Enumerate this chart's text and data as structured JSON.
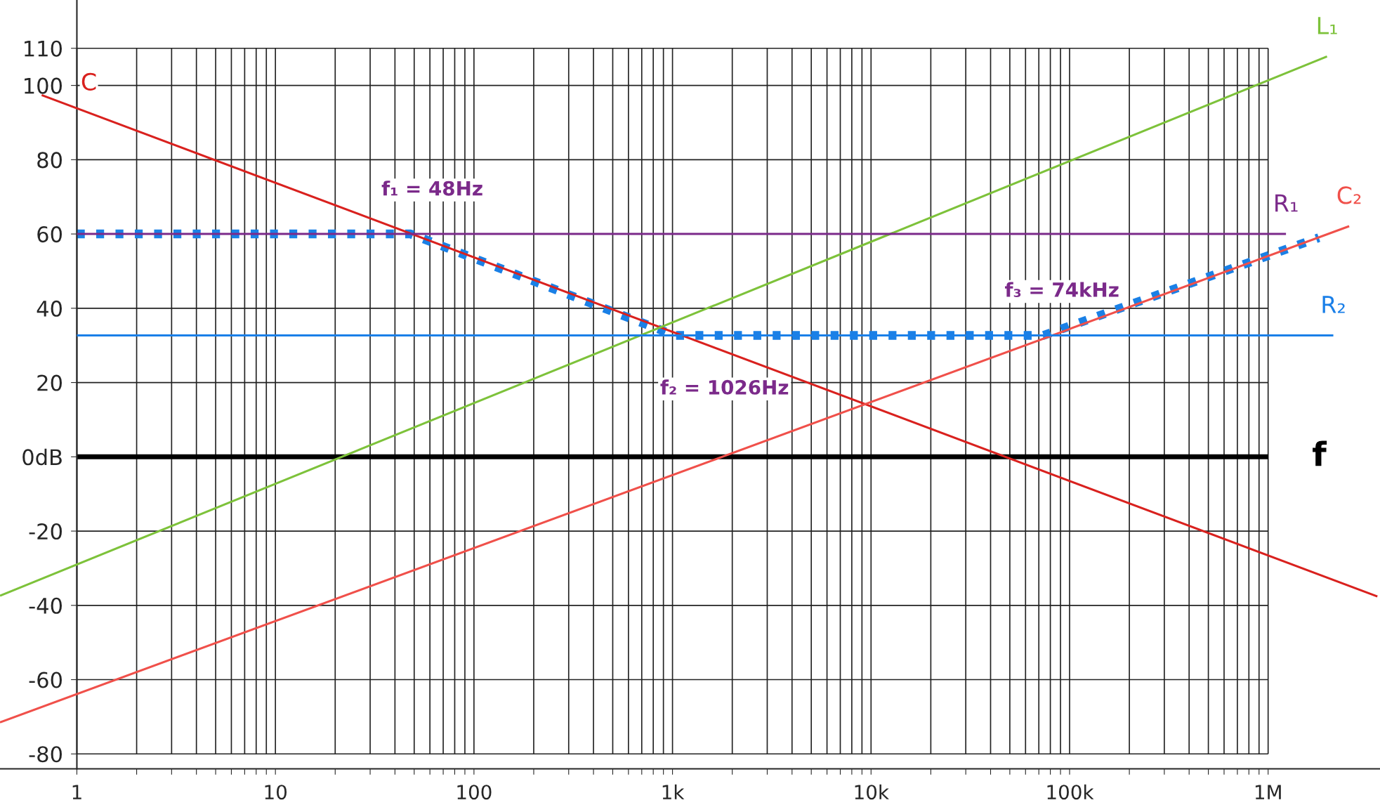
{
  "chart_data": {
    "type": "line",
    "log": "x",
    "xlim": [
      0.41,
      3660000
    ],
    "ylim": [
      -84,
      123
    ],
    "xticks": [
      {
        "value": 1,
        "label": "1"
      },
      {
        "value": 2,
        "label": null
      },
      {
        "value": 3,
        "label": null
      },
      {
        "value": 4,
        "label": null
      },
      {
        "value": 5,
        "label": null
      },
      {
        "value": 6,
        "label": null
      },
      {
        "value": 7,
        "label": null
      },
      {
        "value": 8,
        "label": null
      },
      {
        "value": 9,
        "label": null
      },
      {
        "value": 10,
        "label": "10"
      },
      {
        "value": 20,
        "label": null
      },
      {
        "value": 30,
        "label": null
      },
      {
        "value": 40,
        "label": null
      },
      {
        "value": 50,
        "label": null
      },
      {
        "value": 60,
        "label": null
      },
      {
        "value": 70,
        "label": null
      },
      {
        "value": 80,
        "label": null
      },
      {
        "value": 90,
        "label": null
      },
      {
        "value": 100,
        "label": "100"
      },
      {
        "value": 200,
        "label": null
      },
      {
        "value": 300,
        "label": null
      },
      {
        "value": 400,
        "label": null
      },
      {
        "value": 500,
        "label": null
      },
      {
        "value": 600,
        "label": null
      },
      {
        "value": 700,
        "label": null
      },
      {
        "value": 800,
        "label": null
      },
      {
        "value": 900,
        "label": null
      },
      {
        "value": 1000,
        "label": "1k"
      },
      {
        "value": 2000,
        "label": null
      },
      {
        "value": 3000,
        "label": null
      },
      {
        "value": 4000,
        "label": null
      },
      {
        "value": 5000,
        "label": null
      },
      {
        "value": 6000,
        "label": null
      },
      {
        "value": 7000,
        "label": null
      },
      {
        "value": 8000,
        "label": null
      },
      {
        "value": 9000,
        "label": null
      },
      {
        "value": 10000,
        "label": "10k"
      },
      {
        "value": 20000,
        "label": null
      },
      {
        "value": 30000,
        "label": null
      },
      {
        "value": 40000,
        "label": null
      },
      {
        "value": 50000,
        "label": null
      },
      {
        "value": 60000,
        "label": null
      },
      {
        "value": 70000,
        "label": null
      },
      {
        "value": 80000,
        "label": null
      },
      {
        "value": 90000,
        "label": null
      },
      {
        "value": 100000,
        "label": "100k"
      },
      {
        "value": 200000,
        "label": null
      },
      {
        "value": 300000,
        "label": null
      },
      {
        "value": 400000,
        "label": null
      },
      {
        "value": 500000,
        "label": null
      },
      {
        "value": 600000,
        "label": null
      },
      {
        "value": 700000,
        "label": null
      },
      {
        "value": 800000,
        "label": null
      },
      {
        "value": 900000,
        "label": null
      },
      {
        "value": 1000000,
        "label": "1M"
      }
    ],
    "yticks": [
      {
        "value": -80,
        "label": "-80"
      },
      {
        "value": -60,
        "label": "-60"
      },
      {
        "value": -40,
        "label": "-40"
      },
      {
        "value": -20,
        "label": "-20"
      },
      {
        "value": 0,
        "label": "0dB"
      },
      20,
      40,
      60,
      80,
      100,
      110
    ],
    "grid": true,
    "series": [
      {
        "name": "C",
        "color": "#d9211e",
        "x": [
          0.665,
          3550000
        ],
        "values": [
          97.4,
          -37.6
        ],
        "line_style": "solid"
      },
      {
        "name": "L₁",
        "color": "#7dc23a",
        "x": [
          0.41,
          1980000
        ],
        "values": [
          -37.4,
          107.8
        ],
        "line_style": "solid"
      },
      {
        "name": "C₂",
        "color": "#f0504a",
        "x": [
          0.41,
          2560000
        ],
        "values": [
          -71.5,
          62.1
        ],
        "line_style": "solid"
      },
      {
        "name": "R₁",
        "color": "#7b2a8a",
        "x": [
          1,
          1230000
        ],
        "values": [
          60,
          60
        ],
        "line_style": "solid"
      },
      {
        "name": "R₂",
        "color": "#1a7fe8",
        "x": [
          1,
          2130000
        ],
        "values": [
          32.7,
          32.7
        ],
        "line_style": "solid"
      },
      {
        "color": "#1a80e6",
        "x": [
          1,
          48,
          1026,
          74000,
          1800000
        ],
        "values": [
          60,
          60,
          32.7,
          32.7,
          59
        ],
        "line_style": "dashed"
      }
    ],
    "ref_lines": [
      {
        "axis": "y",
        "value": 0,
        "label": "f",
        "color": "#000000"
      }
    ],
    "annotations": [
      {
        "text": "f₁ = 48Hz",
        "x": 48,
        "y": 60
      },
      {
        "text": "f₂ = 1026Hz",
        "x": 1026,
        "y": 32.7
      },
      {
        "text": "f₃ = 74kHz",
        "x": 74000,
        "y": 32.7
      }
    ]
  }
}
